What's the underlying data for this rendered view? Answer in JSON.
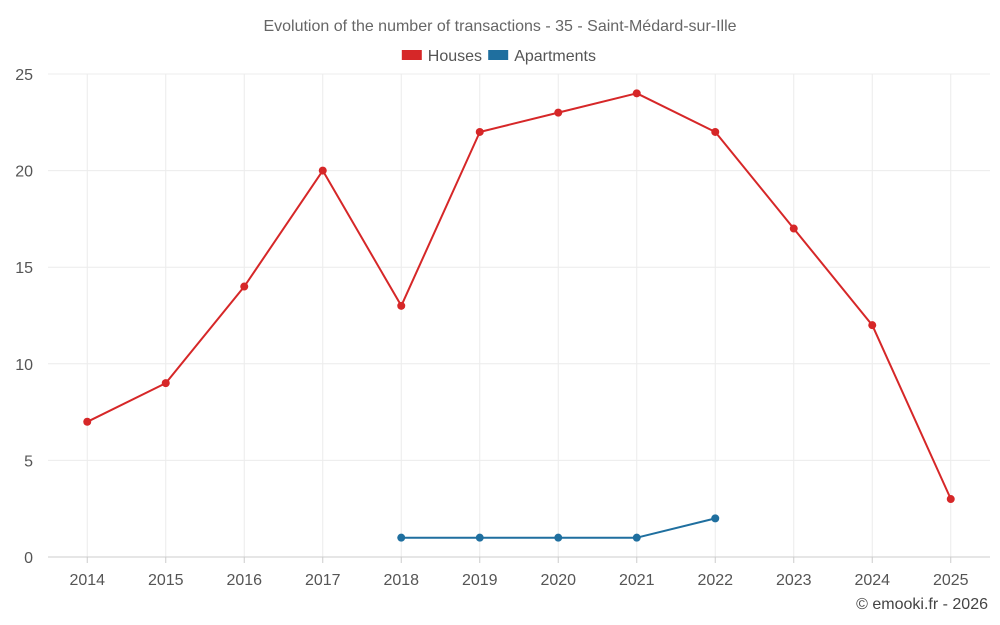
{
  "chart_data": {
    "type": "line",
    "title": "Evolution of the number of transactions - 35 - Saint-Médard-sur-Ille",
    "xlabel": "",
    "ylabel": "",
    "categories": [
      "2014",
      "2015",
      "2016",
      "2017",
      "2018",
      "2019",
      "2020",
      "2021",
      "2022",
      "2023",
      "2024",
      "2025"
    ],
    "ylim": [
      0,
      25
    ],
    "yticks": [
      0,
      5,
      10,
      15,
      20,
      25
    ],
    "ytick_labels": [
      "0",
      "5",
      "10",
      "15",
      "20",
      "25"
    ],
    "grid": true,
    "legend_position": "top-center",
    "series": [
      {
        "name": "Houses",
        "color": "#d62728",
        "values": [
          7,
          9,
          14,
          20,
          13,
          22,
          23,
          24,
          22,
          17,
          12,
          3
        ]
      },
      {
        "name": "Apartments",
        "color": "#1f6f9f",
        "values": [
          null,
          null,
          null,
          null,
          1,
          1,
          1,
          1,
          2,
          null,
          null,
          null
        ]
      }
    ]
  },
  "credit": "© emooki.fr - 2026"
}
